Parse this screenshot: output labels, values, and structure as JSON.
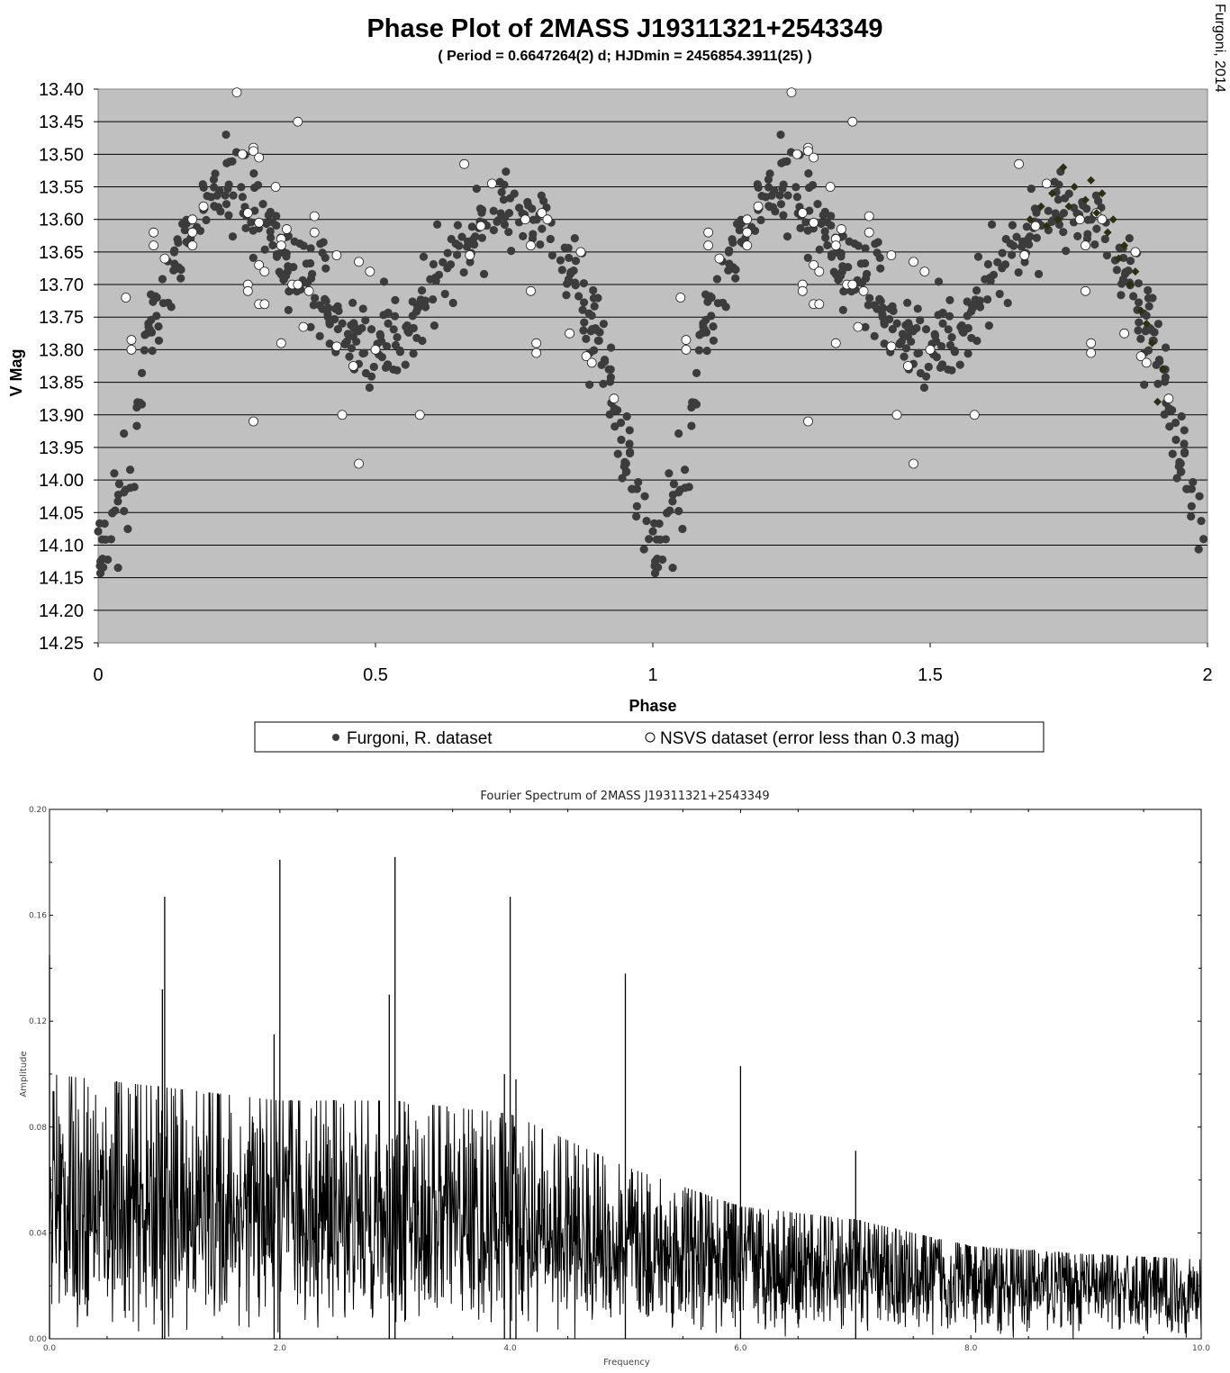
{
  "credit": "Furgoni, 2014",
  "chart_data": [
    {
      "type": "scatter",
      "title": "Phase Plot of 2MASS J19311321+2543349",
      "subtitle": "( Period =  0.6647264(2) d; HJDmin = 2456854.3911(25) )",
      "xlabel": "Phase",
      "ylabel": "V Mag",
      "xlim": [
        0,
        2
      ],
      "ylim": [
        13.4,
        14.25
      ],
      "y_inverted": true,
      "grid": "horizontal",
      "background": "#c0c0c0",
      "x_ticks": [
        "0",
        "0.5",
        "1",
        "1.5",
        "2"
      ],
      "y_ticks": [
        "13.40",
        "13.45",
        "13.50",
        "13.55",
        "13.60",
        "13.65",
        "13.70",
        "13.75",
        "13.80",
        "13.85",
        "13.90",
        "13.95",
        "14.00",
        "14.05",
        "14.10",
        "14.15",
        "14.20",
        "14.25"
      ],
      "legend_position": "bottom",
      "light_curve": {
        "phase": [
          0.0,
          0.05,
          0.1,
          0.15,
          0.2,
          0.25,
          0.3,
          0.35,
          0.4,
          0.45,
          0.5,
          0.55,
          0.6,
          0.65,
          0.7,
          0.75,
          0.8,
          0.85,
          0.9,
          0.95,
          1.0
        ],
        "vmag": [
          14.1,
          14.02,
          13.75,
          13.64,
          13.58,
          13.56,
          13.6,
          13.66,
          13.72,
          13.78,
          13.8,
          13.78,
          13.7,
          13.64,
          13.6,
          13.59,
          13.61,
          13.67,
          13.78,
          13.96,
          14.1
        ],
        "scatter_mag": 0.035
      },
      "series": [
        {
          "name": "Furgoni, R. dataset",
          "marker": "filled-circle",
          "color": "#3c3c3c",
          "points_per_cycle": 420
        },
        {
          "name": "NSVS dataset (error less than 0.3 mag)",
          "marker": "open-circle",
          "color": "#ffffff",
          "points": [
            [
              0.05,
              13.72
            ],
            [
              0.06,
              13.785
            ],
            [
              0.06,
              13.8
            ],
            [
              0.1,
              13.62
            ],
            [
              0.1,
              13.64
            ],
            [
              0.12,
              13.66
            ],
            [
              0.17,
              13.6
            ],
            [
              0.17,
              13.62
            ],
            [
              0.17,
              13.64
            ],
            [
              0.19,
              13.58
            ],
            [
              0.25,
              13.405
            ],
            [
              0.26,
              13.5
            ],
            [
              0.27,
              13.59
            ],
            [
              0.27,
              13.7
            ],
            [
              0.27,
              13.71
            ],
            [
              0.28,
              13.91
            ],
            [
              0.28,
              13.49
            ],
            [
              0.28,
              13.495
            ],
            [
              0.29,
              13.505
            ],
            [
              0.29,
              13.605
            ],
            [
              0.29,
              13.67
            ],
            [
              0.29,
              13.73
            ],
            [
              0.3,
              13.68
            ],
            [
              0.3,
              13.73
            ],
            [
              0.32,
              13.55
            ],
            [
              0.33,
              13.63
            ],
            [
              0.33,
              13.64
            ],
            [
              0.33,
              13.79
            ],
            [
              0.34,
              13.615
            ],
            [
              0.35,
              13.7
            ],
            [
              0.36,
              13.45
            ],
            [
              0.36,
              13.7
            ],
            [
              0.37,
              13.765
            ],
            [
              0.38,
              13.71
            ],
            [
              0.39,
              13.595
            ],
            [
              0.39,
              13.62
            ],
            [
              0.43,
              13.655
            ],
            [
              0.43,
              13.795
            ],
            [
              0.47,
              13.665
            ],
            [
              0.47,
              13.975
            ],
            [
              0.49,
              13.68
            ],
            [
              0.5,
              13.8
            ],
            [
              0.44,
              13.9
            ],
            [
              0.46,
              13.825
            ],
            [
              0.58,
              13.9
            ],
            [
              0.67,
              13.655
            ],
            [
              0.66,
              13.515
            ],
            [
              0.69,
              13.61
            ],
            [
              0.71,
              13.545
            ],
            [
              0.77,
              13.6
            ],
            [
              0.78,
              13.64
            ],
            [
              0.78,
              13.71
            ],
            [
              0.79,
              13.79
            ],
            [
              0.79,
              13.805
            ],
            [
              0.8,
              13.59
            ],
            [
              0.81,
              13.6
            ],
            [
              0.85,
              13.775
            ],
            [
              0.87,
              13.65
            ],
            [
              0.88,
              13.81
            ],
            [
              0.89,
              13.82
            ],
            [
              0.93,
              13.875
            ]
          ]
        },
        {
          "name": "",
          "marker": "filled-diamond",
          "color": "#2e2e12",
          "points": [
            [
              1.68,
              13.6
            ],
            [
              1.7,
              13.58
            ],
            [
              1.72,
              13.56
            ],
            [
              1.74,
              13.52
            ],
            [
              1.76,
              13.55
            ],
            [
              1.78,
              13.57
            ],
            [
              1.8,
              13.59
            ],
            [
              1.82,
              13.62
            ],
            [
              1.84,
              13.66
            ],
            [
              1.86,
              13.7
            ],
            [
              1.88,
              13.74
            ],
            [
              1.9,
              13.79
            ],
            [
              1.92,
              13.83
            ],
            [
              1.71,
              13.61
            ],
            [
              1.75,
              13.58
            ],
            [
              1.79,
              13.54
            ],
            [
              1.83,
              13.6
            ],
            [
              1.87,
              13.68
            ],
            [
              1.89,
              13.76
            ],
            [
              1.91,
              13.88
            ],
            [
              1.73,
              13.6
            ],
            [
              1.81,
              13.56
            ],
            [
              1.85,
              13.64
            ]
          ]
        }
      ]
    },
    {
      "type": "line",
      "title": "Fourier Spectrum of 2MASS J19311321+2543349",
      "xlabel": "Frequency",
      "ylabel": "Amplitude",
      "xlim": [
        0,
        10
      ],
      "ylim": [
        0,
        0.2
      ],
      "x_ticks": [
        "0.0",
        "2.0",
        "4.0",
        "6.0",
        "8.0",
        "10.0"
      ],
      "y_ticks": [
        "0.00",
        "0.04",
        "0.08",
        "0.12",
        "0.16",
        "0.20"
      ],
      "peaks": [
        {
          "x": 0.0,
          "y": 0.145
        },
        {
          "x": 0.98,
          "y": 0.132
        },
        {
          "x": 1.0,
          "y": 0.167
        },
        {
          "x": 1.95,
          "y": 0.115
        },
        {
          "x": 2.0,
          "y": 0.181
        },
        {
          "x": 2.95,
          "y": 0.13
        },
        {
          "x": 3.0,
          "y": 0.182
        },
        {
          "x": 3.95,
          "y": 0.1
        },
        {
          "x": 4.0,
          "y": 0.167
        },
        {
          "x": 4.05,
          "y": 0.098
        },
        {
          "x": 5.0,
          "y": 0.138
        },
        {
          "x": 6.0,
          "y": 0.103
        },
        {
          "x": 7.0,
          "y": 0.071
        }
      ],
      "noise_envelope": {
        "x": [
          0,
          1,
          2,
          3,
          4,
          5,
          6,
          7,
          8,
          9,
          10
        ],
        "amplitude_max": [
          0.1,
          0.095,
          0.09,
          0.09,
          0.085,
          0.065,
          0.05,
          0.045,
          0.035,
          0.032,
          0.03
        ],
        "amplitude_mean": [
          0.055,
          0.05,
          0.05,
          0.048,
          0.045,
          0.035,
          0.03,
          0.026,
          0.022,
          0.02,
          0.018
        ]
      }
    }
  ]
}
